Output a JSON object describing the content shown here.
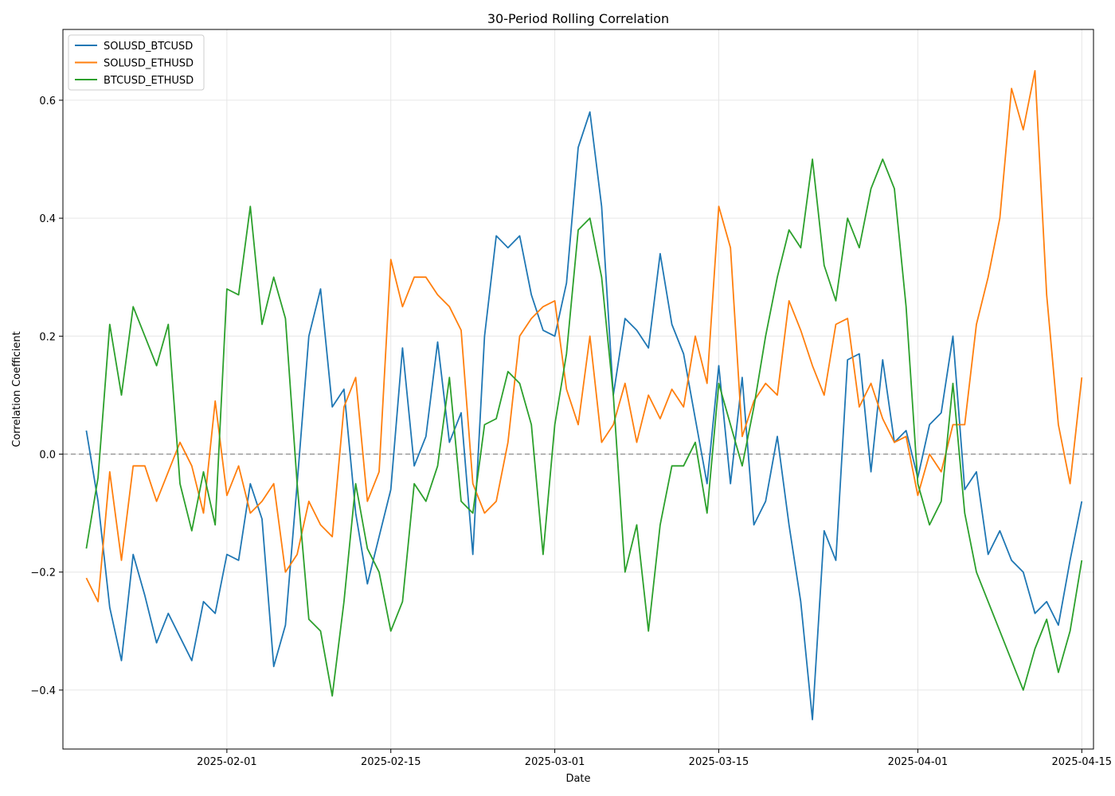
{
  "chart_data": {
    "type": "line",
    "title": "30-Period Rolling Correlation",
    "xlabel": "Date",
    "ylabel": "Correlation Coefficient",
    "x_range": [
      "2025-01-18",
      "2025-04-16"
    ],
    "ylim": [
      -0.5,
      0.72
    ],
    "x_ticks": [
      "2025-02-01",
      "2025-02-15",
      "2025-03-01",
      "2025-03-15",
      "2025-04-01",
      "2025-04-15"
    ],
    "y_ticks": [
      -0.4,
      -0.2,
      0.0,
      0.2,
      0.4,
      0.6
    ],
    "y_tick_labels": [
      "−0.4",
      "−0.2",
      "0.0",
      "0.2",
      "0.4",
      "0.6"
    ],
    "grid": true,
    "legend_position": "top-left",
    "reference_line": {
      "y": 0.0,
      "style": "dashed",
      "color": "#999999"
    },
    "series": [
      {
        "name": "SOLUSD_BTCUSD",
        "color": "#1f77b4",
        "points": [
          [
            "2025-01-20",
            0.04
          ],
          [
            "2025-01-21",
            -0.08
          ],
          [
            "2025-01-22",
            -0.26
          ],
          [
            "2025-01-23",
            -0.35
          ],
          [
            "2025-01-24",
            -0.17
          ],
          [
            "2025-01-25",
            -0.24
          ],
          [
            "2025-01-26",
            -0.32
          ],
          [
            "2025-01-27",
            -0.27
          ],
          [
            "2025-01-28",
            -0.31
          ],
          [
            "2025-01-29",
            -0.35
          ],
          [
            "2025-01-30",
            -0.25
          ],
          [
            "2025-01-31",
            -0.27
          ],
          [
            "2025-02-01",
            -0.17
          ],
          [
            "2025-02-02",
            -0.18
          ],
          [
            "2025-02-03",
            -0.05
          ],
          [
            "2025-02-04",
            -0.11
          ],
          [
            "2025-02-05",
            -0.36
          ],
          [
            "2025-02-06",
            -0.29
          ],
          [
            "2025-02-07",
            -0.05
          ],
          [
            "2025-02-08",
            0.2
          ],
          [
            "2025-02-09",
            0.28
          ],
          [
            "2025-02-10",
            0.08
          ],
          [
            "2025-02-11",
            0.11
          ],
          [
            "2025-02-12",
            -0.1
          ],
          [
            "2025-02-13",
            -0.22
          ],
          [
            "2025-02-14",
            -0.14
          ],
          [
            "2025-02-15",
            -0.06
          ],
          [
            "2025-02-16",
            0.18
          ],
          [
            "2025-02-17",
            -0.02
          ],
          [
            "2025-02-18",
            0.03
          ],
          [
            "2025-02-19",
            0.19
          ],
          [
            "2025-02-20",
            0.02
          ],
          [
            "2025-02-21",
            0.07
          ],
          [
            "2025-02-22",
            -0.17
          ],
          [
            "2025-02-23",
            0.2
          ],
          [
            "2025-02-24",
            0.37
          ],
          [
            "2025-02-25",
            0.35
          ],
          [
            "2025-02-26",
            0.37
          ],
          [
            "2025-02-27",
            0.27
          ],
          [
            "2025-02-28",
            0.21
          ],
          [
            "2025-03-01",
            0.2
          ],
          [
            "2025-03-02",
            0.29
          ],
          [
            "2025-03-03",
            0.52
          ],
          [
            "2025-03-04",
            0.58
          ],
          [
            "2025-03-05",
            0.42
          ],
          [
            "2025-03-06",
            0.1
          ],
          [
            "2025-03-07",
            0.23
          ],
          [
            "2025-03-08",
            0.21
          ],
          [
            "2025-03-09",
            0.18
          ],
          [
            "2025-03-10",
            0.34
          ],
          [
            "2025-03-11",
            0.22
          ],
          [
            "2025-03-12",
            0.17
          ],
          [
            "2025-03-13",
            0.06
          ],
          [
            "2025-03-14",
            -0.05
          ],
          [
            "2025-03-15",
            0.15
          ],
          [
            "2025-03-16",
            -0.05
          ],
          [
            "2025-03-17",
            0.13
          ],
          [
            "2025-03-18",
            -0.12
          ],
          [
            "2025-03-19",
            -0.08
          ],
          [
            "2025-03-20",
            0.03
          ],
          [
            "2025-03-21",
            -0.12
          ],
          [
            "2025-03-22",
            -0.25
          ],
          [
            "2025-03-23",
            -0.45
          ],
          [
            "2025-03-24",
            -0.13
          ],
          [
            "2025-03-25",
            -0.18
          ],
          [
            "2025-03-26",
            0.16
          ],
          [
            "2025-03-27",
            0.17
          ],
          [
            "2025-03-28",
            -0.03
          ],
          [
            "2025-03-29",
            0.16
          ],
          [
            "2025-03-30",
            0.02
          ],
          [
            "2025-03-31",
            0.04
          ],
          [
            "2025-04-01",
            -0.04
          ],
          [
            "2025-04-02",
            0.05
          ],
          [
            "2025-04-03",
            0.07
          ],
          [
            "2025-04-04",
            0.2
          ],
          [
            "2025-04-05",
            -0.06
          ],
          [
            "2025-04-06",
            -0.03
          ],
          [
            "2025-04-07",
            -0.17
          ],
          [
            "2025-04-08",
            -0.13
          ],
          [
            "2025-04-09",
            -0.18
          ],
          [
            "2025-04-10",
            -0.2
          ],
          [
            "2025-04-11",
            -0.27
          ],
          [
            "2025-04-12",
            -0.25
          ],
          [
            "2025-04-13",
            -0.29
          ],
          [
            "2025-04-14",
            -0.18
          ],
          [
            "2025-04-15",
            -0.08
          ]
        ]
      },
      {
        "name": "SOLUSD_ETHUSD",
        "color": "#ff7f0e",
        "points": [
          [
            "2025-01-20",
            -0.21
          ],
          [
            "2025-01-21",
            -0.25
          ],
          [
            "2025-01-22",
            -0.03
          ],
          [
            "2025-01-23",
            -0.18
          ],
          [
            "2025-01-24",
            -0.02
          ],
          [
            "2025-01-25",
            -0.02
          ],
          [
            "2025-01-26",
            -0.08
          ],
          [
            "2025-01-27",
            -0.03
          ],
          [
            "2025-01-28",
            0.02
          ],
          [
            "2025-01-29",
            -0.02
          ],
          [
            "2025-01-30",
            -0.1
          ],
          [
            "2025-01-31",
            0.09
          ],
          [
            "2025-02-01",
            -0.07
          ],
          [
            "2025-02-02",
            -0.02
          ],
          [
            "2025-02-03",
            -0.1
          ],
          [
            "2025-02-04",
            -0.08
          ],
          [
            "2025-02-05",
            -0.05
          ],
          [
            "2025-02-06",
            -0.2
          ],
          [
            "2025-02-07",
            -0.17
          ],
          [
            "2025-02-08",
            -0.08
          ],
          [
            "2025-02-09",
            -0.12
          ],
          [
            "2025-02-10",
            -0.14
          ],
          [
            "2025-02-11",
            0.08
          ],
          [
            "2025-02-12",
            0.13
          ],
          [
            "2025-02-13",
            -0.08
          ],
          [
            "2025-02-14",
            -0.03
          ],
          [
            "2025-02-15",
            0.33
          ],
          [
            "2025-02-16",
            0.25
          ],
          [
            "2025-02-17",
            0.3
          ],
          [
            "2025-02-18",
            0.3
          ],
          [
            "2025-02-19",
            0.27
          ],
          [
            "2025-02-20",
            0.25
          ],
          [
            "2025-02-21",
            0.21
          ],
          [
            "2025-02-22",
            -0.05
          ],
          [
            "2025-02-23",
            -0.1
          ],
          [
            "2025-02-24",
            -0.08
          ],
          [
            "2025-02-25",
            0.02
          ],
          [
            "2025-02-26",
            0.2
          ],
          [
            "2025-02-27",
            0.23
          ],
          [
            "2025-02-28",
            0.25
          ],
          [
            "2025-03-01",
            0.26
          ],
          [
            "2025-03-02",
            0.11
          ],
          [
            "2025-03-03",
            0.05
          ],
          [
            "2025-03-04",
            0.2
          ],
          [
            "2025-03-05",
            0.02
          ],
          [
            "2025-03-06",
            0.05
          ],
          [
            "2025-03-07",
            0.12
          ],
          [
            "2025-03-08",
            0.02
          ],
          [
            "2025-03-09",
            0.1
          ],
          [
            "2025-03-10",
            0.06
          ],
          [
            "2025-03-11",
            0.11
          ],
          [
            "2025-03-12",
            0.08
          ],
          [
            "2025-03-13",
            0.2
          ],
          [
            "2025-03-14",
            0.12
          ],
          [
            "2025-03-15",
            0.42
          ],
          [
            "2025-03-16",
            0.35
          ],
          [
            "2025-03-17",
            0.03
          ],
          [
            "2025-03-18",
            0.09
          ],
          [
            "2025-03-19",
            0.12
          ],
          [
            "2025-03-20",
            0.1
          ],
          [
            "2025-03-21",
            0.26
          ],
          [
            "2025-03-22",
            0.21
          ],
          [
            "2025-03-23",
            0.15
          ],
          [
            "2025-03-24",
            0.1
          ],
          [
            "2025-03-25",
            0.22
          ],
          [
            "2025-03-26",
            0.23
          ],
          [
            "2025-03-27",
            0.08
          ],
          [
            "2025-03-28",
            0.12
          ],
          [
            "2025-03-29",
            0.06
          ],
          [
            "2025-03-30",
            0.02
          ],
          [
            "2025-03-31",
            0.03
          ],
          [
            "2025-04-01",
            -0.07
          ],
          [
            "2025-04-02",
            0.0
          ],
          [
            "2025-04-03",
            -0.03
          ],
          [
            "2025-04-04",
            0.05
          ],
          [
            "2025-04-05",
            0.05
          ],
          [
            "2025-04-06",
            0.22
          ],
          [
            "2025-04-07",
            0.3
          ],
          [
            "2025-04-08",
            0.4
          ],
          [
            "2025-04-09",
            0.62
          ],
          [
            "2025-04-10",
            0.55
          ],
          [
            "2025-04-11",
            0.65
          ],
          [
            "2025-04-12",
            0.27
          ],
          [
            "2025-04-13",
            0.05
          ],
          [
            "2025-04-14",
            -0.05
          ],
          [
            "2025-04-15",
            0.13
          ]
        ]
      },
      {
        "name": "BTCUSD_ETHUSD",
        "color": "#2ca02c",
        "points": [
          [
            "2025-01-20",
            -0.16
          ],
          [
            "2025-01-21",
            -0.04
          ],
          [
            "2025-01-22",
            0.22
          ],
          [
            "2025-01-23",
            0.1
          ],
          [
            "2025-01-24",
            0.25
          ],
          [
            "2025-01-25",
            0.2
          ],
          [
            "2025-01-26",
            0.15
          ],
          [
            "2025-01-27",
            0.22
          ],
          [
            "2025-01-28",
            -0.05
          ],
          [
            "2025-01-29",
            -0.13
          ],
          [
            "2025-01-30",
            -0.03
          ],
          [
            "2025-01-31",
            -0.12
          ],
          [
            "2025-02-01",
            0.28
          ],
          [
            "2025-02-02",
            0.27
          ],
          [
            "2025-02-03",
            0.42
          ],
          [
            "2025-02-04",
            0.22
          ],
          [
            "2025-02-05",
            0.3
          ],
          [
            "2025-02-06",
            0.23
          ],
          [
            "2025-02-07",
            -0.05
          ],
          [
            "2025-02-08",
            -0.28
          ],
          [
            "2025-02-09",
            -0.3
          ],
          [
            "2025-02-10",
            -0.41
          ],
          [
            "2025-02-11",
            -0.25
          ],
          [
            "2025-02-12",
            -0.05
          ],
          [
            "2025-02-13",
            -0.16
          ],
          [
            "2025-02-14",
            -0.2
          ],
          [
            "2025-02-15",
            -0.3
          ],
          [
            "2025-02-16",
            -0.25
          ],
          [
            "2025-02-17",
            -0.05
          ],
          [
            "2025-02-18",
            -0.08
          ],
          [
            "2025-02-19",
            -0.02
          ],
          [
            "2025-02-20",
            0.13
          ],
          [
            "2025-02-21",
            -0.08
          ],
          [
            "2025-02-22",
            -0.1
          ],
          [
            "2025-02-23",
            0.05
          ],
          [
            "2025-02-24",
            0.06
          ],
          [
            "2025-02-25",
            0.14
          ],
          [
            "2025-02-26",
            0.12
          ],
          [
            "2025-02-27",
            0.05
          ],
          [
            "2025-02-28",
            -0.17
          ],
          [
            "2025-03-01",
            0.05
          ],
          [
            "2025-03-02",
            0.17
          ],
          [
            "2025-03-03",
            0.38
          ],
          [
            "2025-03-04",
            0.4
          ],
          [
            "2025-03-05",
            0.3
          ],
          [
            "2025-03-06",
            0.1
          ],
          [
            "2025-03-07",
            -0.2
          ],
          [
            "2025-03-08",
            -0.12
          ],
          [
            "2025-03-09",
            -0.3
          ],
          [
            "2025-03-10",
            -0.12
          ],
          [
            "2025-03-11",
            -0.02
          ],
          [
            "2025-03-12",
            -0.02
          ],
          [
            "2025-03-13",
            0.02
          ],
          [
            "2025-03-14",
            -0.1
          ],
          [
            "2025-03-15",
            0.12
          ],
          [
            "2025-03-16",
            0.05
          ],
          [
            "2025-03-17",
            -0.02
          ],
          [
            "2025-03-18",
            0.08
          ],
          [
            "2025-03-19",
            0.2
          ],
          [
            "2025-03-20",
            0.3
          ],
          [
            "2025-03-21",
            0.38
          ],
          [
            "2025-03-22",
            0.35
          ],
          [
            "2025-03-23",
            0.5
          ],
          [
            "2025-03-24",
            0.32
          ],
          [
            "2025-03-25",
            0.26
          ],
          [
            "2025-03-26",
            0.4
          ],
          [
            "2025-03-27",
            0.35
          ],
          [
            "2025-03-28",
            0.45
          ],
          [
            "2025-03-29",
            0.5
          ],
          [
            "2025-03-30",
            0.45
          ],
          [
            "2025-03-31",
            0.25
          ],
          [
            "2025-04-01",
            -0.05
          ],
          [
            "2025-04-02",
            -0.12
          ],
          [
            "2025-04-03",
            -0.08
          ],
          [
            "2025-04-04",
            0.12
          ],
          [
            "2025-04-05",
            -0.1
          ],
          [
            "2025-04-06",
            -0.2
          ],
          [
            "2025-04-07",
            -0.25
          ],
          [
            "2025-04-08",
            -0.3
          ],
          [
            "2025-04-09",
            -0.35
          ],
          [
            "2025-04-10",
            -0.4
          ],
          [
            "2025-04-11",
            -0.33
          ],
          [
            "2025-04-12",
            -0.28
          ],
          [
            "2025-04-13",
            -0.37
          ],
          [
            "2025-04-14",
            -0.3
          ],
          [
            "2025-04-15",
            -0.18
          ]
        ]
      }
    ]
  }
}
